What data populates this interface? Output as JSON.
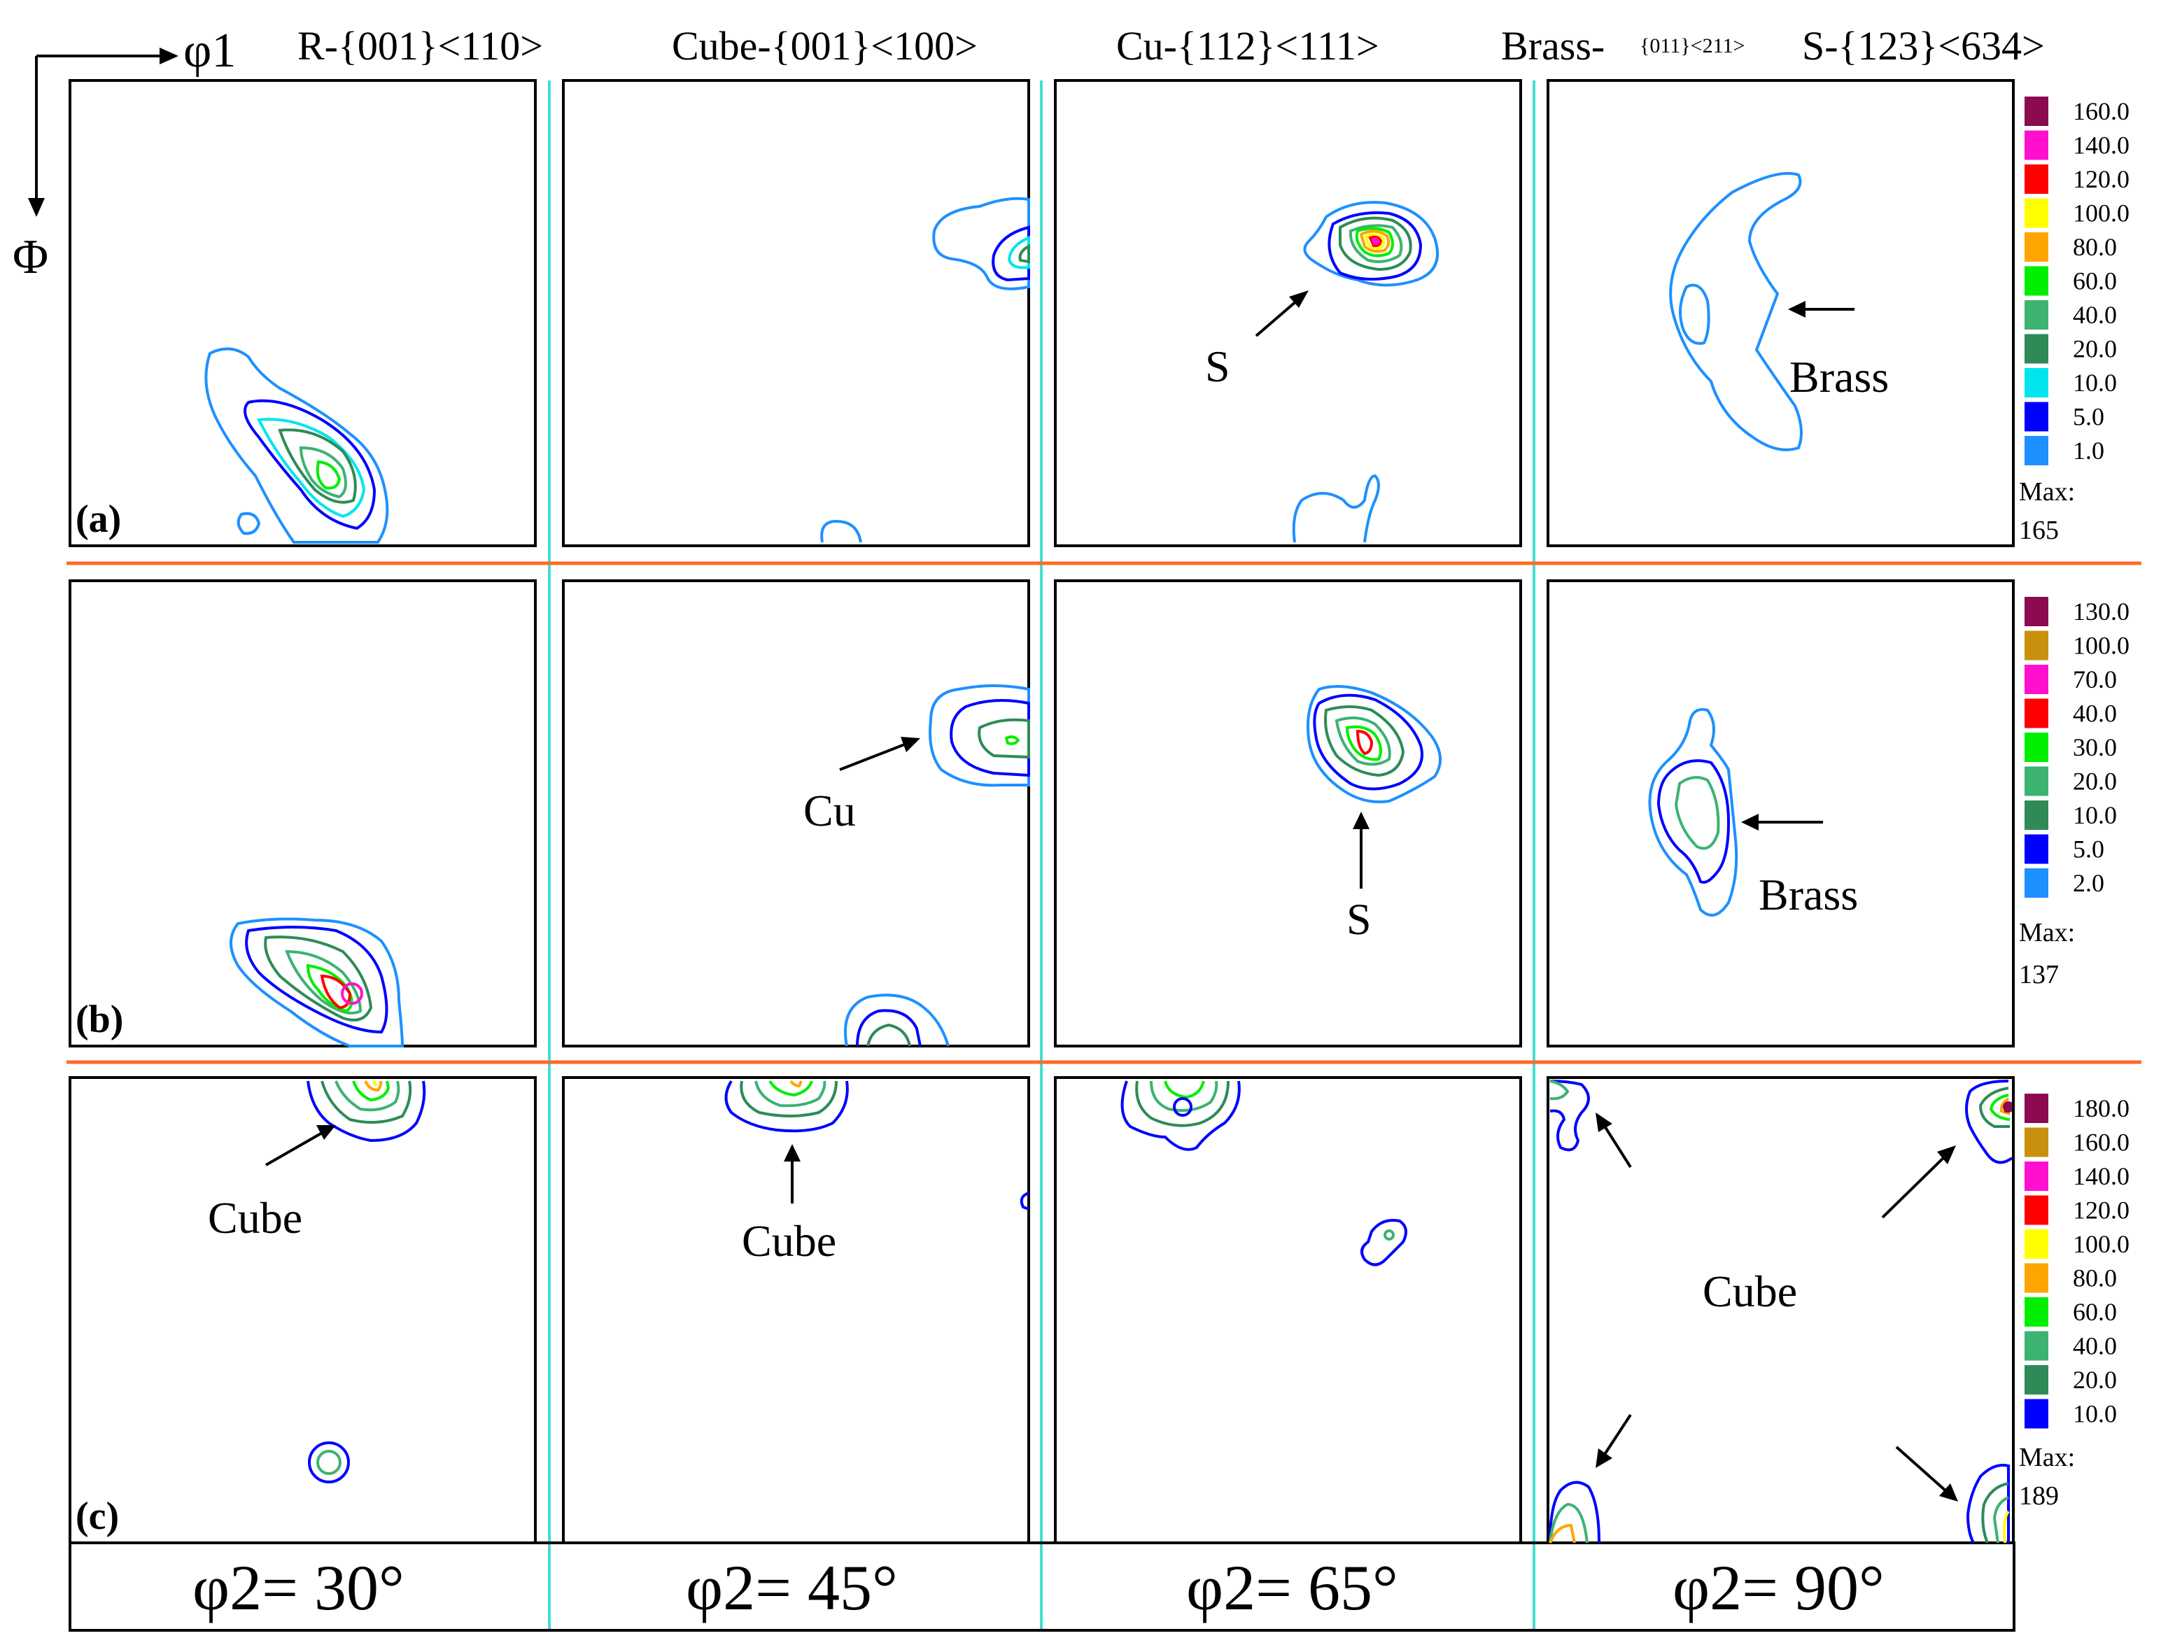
{
  "axes": {
    "phi1": "φ1",
    "Phi": "Φ"
  },
  "headers": {
    "R": "R-{001}<110>",
    "Cube": "Cube-{001}<100>",
    "Cu": "Cu-{112}<111>",
    "Brass_a": "Brass-",
    "Brass_b": "{011}<211>",
    "S": "S-{123}<634>"
  },
  "rows": {
    "a": "(a)",
    "b": "(b)",
    "c": "(c)"
  },
  "annotations": {
    "a_S": "S",
    "a_Brass": "Brass",
    "b_Cu": "Cu",
    "b_S": "S",
    "b_Brass": "Brass",
    "c_Cube1": "Cube",
    "c_Cube2": "Cube",
    "c_Cube4": "Cube"
  },
  "footer": [
    "φ2= 30°",
    "φ2= 45°",
    "φ2= 65°",
    "φ2= 90°"
  ],
  "legends": [
    {
      "values": [
        "160.0",
        "140.0",
        "120.0",
        "100.0",
        "80.0",
        "60.0",
        "40.0",
        "20.0",
        "10.0",
        "5.0",
        "1.0"
      ],
      "max_label": "Max:",
      "max": "165",
      "colors": [
        "#8b0a50",
        "#ff10d0",
        "#ff0000",
        "#ffff00",
        "#ffa500",
        "#00ee00",
        "#3cb371",
        "#2e8b57",
        "#00e5ee",
        "#0000ff",
        "#1e90ff"
      ]
    },
    {
      "values": [
        "130.0",
        "100.0",
        "70.0",
        "40.0",
        "30.0",
        "20.0",
        "10.0",
        "5.0",
        "2.0"
      ],
      "max_label": "Max:",
      "max": "137",
      "colors": [
        "#8b0a50",
        "#c8900c",
        "#ff10d0",
        "#ff0000",
        "#00ee00",
        "#3cb371",
        "#2e8b57",
        "#0000ff",
        "#1e90ff"
      ]
    },
    {
      "values": [
        "180.0",
        "160.0",
        "140.0",
        "120.0",
        "100.0",
        "80.0",
        "60.0",
        "40.0",
        "20.0",
        "10.0"
      ],
      "max_label": "Max:",
      "max": "189",
      "colors": [
        "#8b0a50",
        "#c8900c",
        "#ff10d0",
        "#ff0000",
        "#ffff00",
        "#ffa500",
        "#00ee00",
        "#3cb371",
        "#2e8b57",
        "#0000ff"
      ]
    }
  ]
}
